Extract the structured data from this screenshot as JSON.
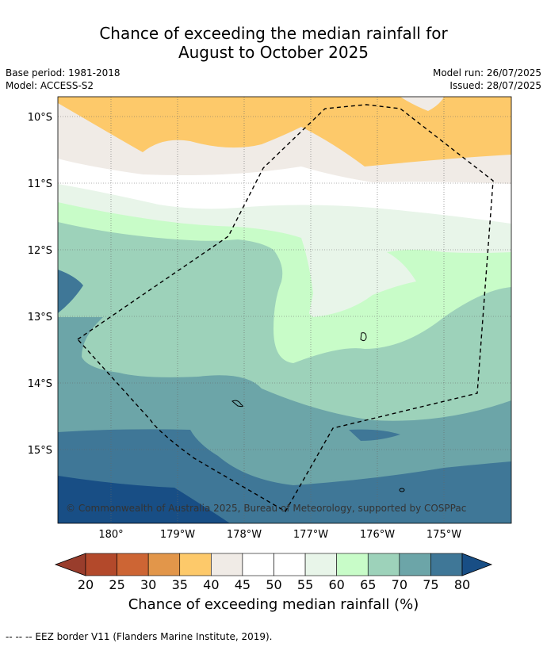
{
  "title": {
    "line1": "Chance of exceeding the median rainfall for",
    "line2": "August to October 2025"
  },
  "meta": {
    "base_period": "Base period: 1981-2018",
    "model": "Model: ACCESS-S2",
    "model_run": "Model run: 26/07/2025",
    "issued": "Issued: 28/07/2025"
  },
  "map": {
    "lat_labels": [
      "10°S",
      "11°S",
      "12°S",
      "13°S",
      "14°S",
      "15°S"
    ],
    "lon_labels": [
      "180°",
      "179°W",
      "178°W",
      "177°W",
      "176°W",
      "175°W"
    ],
    "copyright": "© Commonwealth of Australia 2025, Bureau of Meteorology, supported by COSPPac"
  },
  "colorbar": {
    "ticks": [
      "20",
      "25",
      "30",
      "35",
      "40",
      "45",
      "50",
      "55",
      "60",
      "65",
      "70",
      "75",
      "80"
    ],
    "colors": [
      "#b3492b",
      "#cd6534",
      "#e2964a",
      "#fdc96a",
      "#f0ebe6",
      "#ffffff",
      "#ffffff",
      "#e8f5e9",
      "#c8fcc8",
      "#9dd2ba",
      "#6ca5a8",
      "#3f7797"
    ],
    "low_color": "#993d2c",
    "high_color": "#184e85",
    "label": "Chance of exceeding median rainfall (%)"
  },
  "footnote": "--  --  -- EEZ border V11 (Flanders Marine Institute, 2019)."
}
